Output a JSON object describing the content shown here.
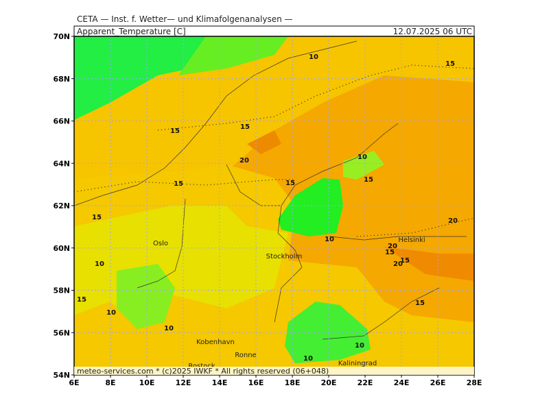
{
  "header": "CETA — Inst. f. Wetter— und Klimafolgenanalysen —",
  "panel": {
    "title": "Apparent_Temperature [C]",
    "valid_time": "12.07.2025 06 UTC"
  },
  "axes": {
    "lat_labels": [
      "54N",
      "56N",
      "58N",
      "60N",
      "62N",
      "64N",
      "66N",
      "68N",
      "70N"
    ],
    "lon_labels": [
      "6E",
      "8E",
      "10E",
      "12E",
      "14E",
      "16E",
      "18E",
      "20E",
      "22E",
      "24E",
      "26E",
      "28E"
    ]
  },
  "contour_labels": [
    "10",
    "15",
    "15",
    "15",
    "20",
    "10",
    "15",
    "15",
    "15",
    "15",
    "20",
    "10",
    "20",
    "15",
    "15",
    "20",
    "10",
    "15",
    "10",
    "10",
    "15",
    "10",
    "10"
  ],
  "cities": [
    "Oslo",
    "Stockholm",
    "Helsinki",
    "Kobenhavn",
    "Ronne",
    "Rostock",
    "Kaliningrad"
  ],
  "footer": "meteo-services.com * (c)2025 IWKF * All rights reserved (06+048)"
}
